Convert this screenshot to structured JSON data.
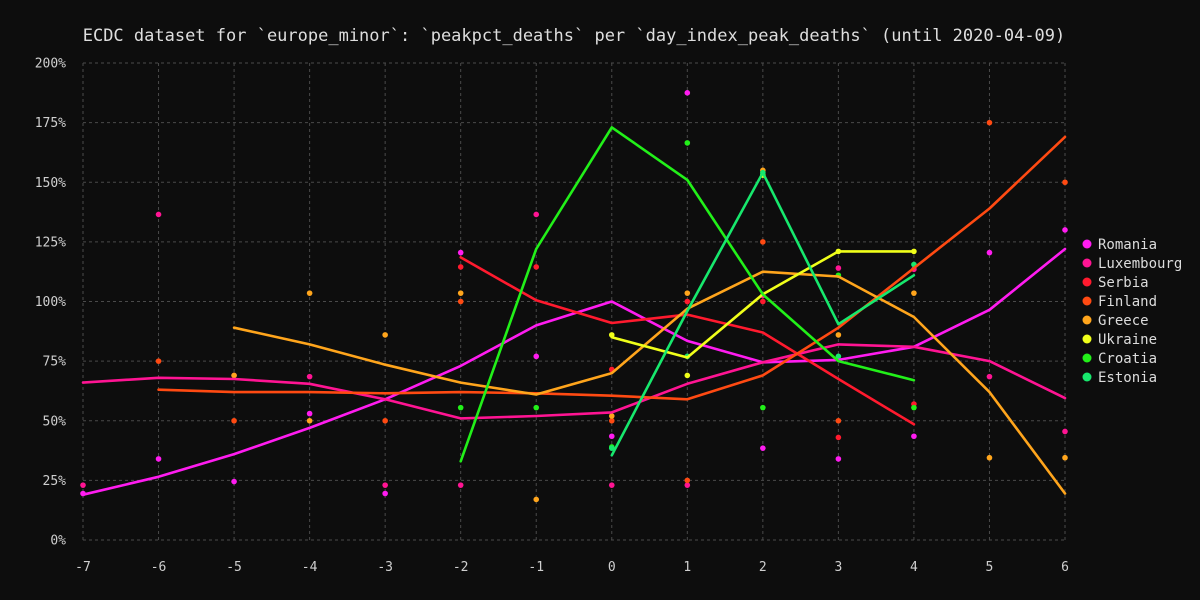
{
  "chart_data": {
    "type": "line",
    "title": "ECDC dataset for `europe_minor`: `peakpct_deaths` per `day_index_peak_deaths` (until 2020-04-09)",
    "xlabel": "",
    "ylabel": "",
    "xlim": [
      -7,
      6
    ],
    "ylim": [
      0,
      200
    ],
    "x_ticks": [
      "-7",
      "-6",
      "-5",
      "-4",
      "-3",
      "-2",
      "-1",
      "0",
      "1",
      "2",
      "3",
      "4",
      "5",
      "6"
    ],
    "y_ticks": [
      "0%",
      "25%",
      "50%",
      "75%",
      "100%",
      "125%",
      "150%",
      "175%",
      "200%"
    ],
    "y_tick_values": [
      0,
      25,
      50,
      75,
      100,
      125,
      150,
      175,
      200
    ],
    "grid": true,
    "legend_position": "right",
    "series": [
      {
        "name": "Romania",
        "color": "#ff1cf0",
        "line": [
          [
            -7,
            19
          ],
          [
            -6,
            26.5
          ],
          [
            -5,
            36
          ],
          [
            -4,
            47
          ],
          [
            -3,
            59
          ],
          [
            -2,
            73
          ],
          [
            -1,
            90
          ],
          [
            0,
            100
          ],
          [
            1,
            83.5
          ],
          [
            2,
            74.5
          ],
          [
            3,
            75.5
          ],
          [
            4,
            81
          ],
          [
            5,
            96.5
          ],
          [
            6,
            122
          ]
        ],
        "points": [
          [
            -7,
            19.5
          ],
          [
            -6,
            34
          ],
          [
            -5,
            24.5
          ],
          [
            -4,
            53
          ],
          [
            -3,
            19.5
          ],
          [
            -2,
            120.5
          ],
          [
            -1,
            77
          ],
          [
            0,
            43.5
          ],
          [
            1,
            187.5
          ],
          [
            2,
            38.5
          ],
          [
            3,
            34
          ],
          [
            4,
            43.5
          ],
          [
            5,
            120.5
          ],
          [
            6,
            130
          ]
        ]
      },
      {
        "name": "Luxembourg",
        "color": "#ff1493",
        "line": [
          [
            -7,
            66
          ],
          [
            -6,
            68
          ],
          [
            -5,
            67.5
          ],
          [
            -4,
            65.5
          ],
          [
            -3,
            59
          ],
          [
            -2,
            51
          ],
          [
            -1,
            52
          ],
          [
            0,
            53.5
          ],
          [
            1,
            65.5
          ],
          [
            2,
            74.5
          ],
          [
            3,
            82
          ],
          [
            4,
            81
          ],
          [
            5,
            75
          ],
          [
            6,
            59.5
          ]
        ],
        "points": [
          [
            -7,
            23
          ],
          [
            -6,
            136.5
          ],
          [
            -5,
            69
          ],
          [
            -4,
            68.5
          ],
          [
            -3,
            23
          ],
          [
            -2,
            23
          ],
          [
            -1,
            136.5
          ],
          [
            0,
            23
          ],
          [
            1,
            23
          ],
          [
            2,
            102.5
          ],
          [
            3,
            114
          ],
          [
            4,
            113.5
          ],
          [
            5,
            68.5
          ],
          [
            6,
            45.5
          ]
        ]
      },
      {
        "name": "Serbia",
        "color": "#ff1a2e",
        "line": [
          [
            -2,
            118.5
          ],
          [
            -1,
            100.5
          ],
          [
            0,
            91
          ],
          [
            1,
            94.5
          ],
          [
            2,
            87
          ],
          [
            3,
            67.5
          ],
          [
            4,
            48.5
          ]
        ],
        "points": [
          [
            -2,
            114.5
          ],
          [
            -1,
            114.5
          ],
          [
            0,
            71.5
          ],
          [
            1,
            100
          ],
          [
            2,
            100
          ],
          [
            3,
            43
          ],
          [
            4,
            57
          ]
        ]
      },
      {
        "name": "Finland",
        "color": "#ff4a12",
        "line": [
          [
            -6,
            63
          ],
          [
            -5,
            62
          ],
          [
            -4,
            62
          ],
          [
            -3,
            61.5
          ],
          [
            -2,
            62
          ],
          [
            -1,
            61.5
          ],
          [
            0,
            60.5
          ],
          [
            1,
            59
          ],
          [
            2,
            69
          ],
          [
            3,
            89
          ],
          [
            4,
            114
          ],
          [
            5,
            139
          ],
          [
            6,
            169
          ]
        ],
        "points": [
          [
            -6,
            75
          ],
          [
            -5,
            50
          ],
          [
            -3,
            50
          ],
          [
            -2,
            100
          ],
          [
            0,
            50
          ],
          [
            1,
            25
          ],
          [
            2,
            125
          ],
          [
            3,
            50
          ],
          [
            5,
            175
          ],
          [
            6,
            150
          ]
        ]
      },
      {
        "name": "Greece",
        "color": "#ffa51c",
        "line": [
          [
            -5,
            89
          ],
          [
            -4,
            82
          ],
          [
            -3,
            73.5
          ],
          [
            -2,
            66
          ],
          [
            -1,
            61
          ],
          [
            0,
            70
          ],
          [
            1,
            97
          ],
          [
            2,
            112.5
          ],
          [
            3,
            110.5
          ],
          [
            4,
            93.5
          ],
          [
            5,
            62
          ],
          [
            6,
            19.5
          ]
        ],
        "points": [
          [
            -5,
            69
          ],
          [
            -4,
            103.5
          ],
          [
            -4,
            50
          ],
          [
            -3,
            86
          ],
          [
            -2,
            103.5
          ],
          [
            -1,
            17
          ],
          [
            0,
            52
          ],
          [
            1,
            103.5
          ],
          [
            2,
            155
          ],
          [
            3,
            86
          ],
          [
            4,
            103.5
          ],
          [
            5,
            34.5
          ],
          [
            6,
            34.5
          ]
        ]
      },
      {
        "name": "Ukraine",
        "color": "#f0ff1a",
        "line": [
          [
            0,
            85
          ],
          [
            1,
            76.5
          ],
          [
            2,
            103
          ],
          [
            3,
            121
          ],
          [
            4,
            121
          ]
        ],
        "points": [
          [
            0,
            86
          ],
          [
            1,
            69
          ],
          [
            2,
            153
          ],
          [
            3,
            121
          ],
          [
            4,
            121
          ]
        ]
      },
      {
        "name": "Croatia",
        "color": "#22f019",
        "line": [
          [
            -2,
            33
          ],
          [
            -1,
            122
          ],
          [
            0,
            173
          ],
          [
            1,
            151
          ],
          [
            2,
            103
          ],
          [
            3,
            75
          ],
          [
            4,
            67
          ]
        ],
        "points": [
          [
            -2,
            55.5
          ],
          [
            -1,
            55.5
          ],
          [
            0,
            39
          ],
          [
            1,
            166.5
          ],
          [
            2,
            55.5
          ],
          [
            3,
            111
          ],
          [
            4,
            55.5
          ]
        ]
      },
      {
        "name": "Estonia",
        "color": "#17e86d",
        "line": [
          [
            0,
            35.5
          ],
          [
            1,
            96
          ],
          [
            2,
            154
          ],
          [
            3,
            90.5
          ],
          [
            4,
            111
          ]
        ],
        "points": [
          [
            0,
            38.5
          ],
          [
            1,
            77
          ],
          [
            2,
            154
          ],
          [
            3,
            77
          ],
          [
            4,
            115.5
          ]
        ]
      }
    ]
  }
}
